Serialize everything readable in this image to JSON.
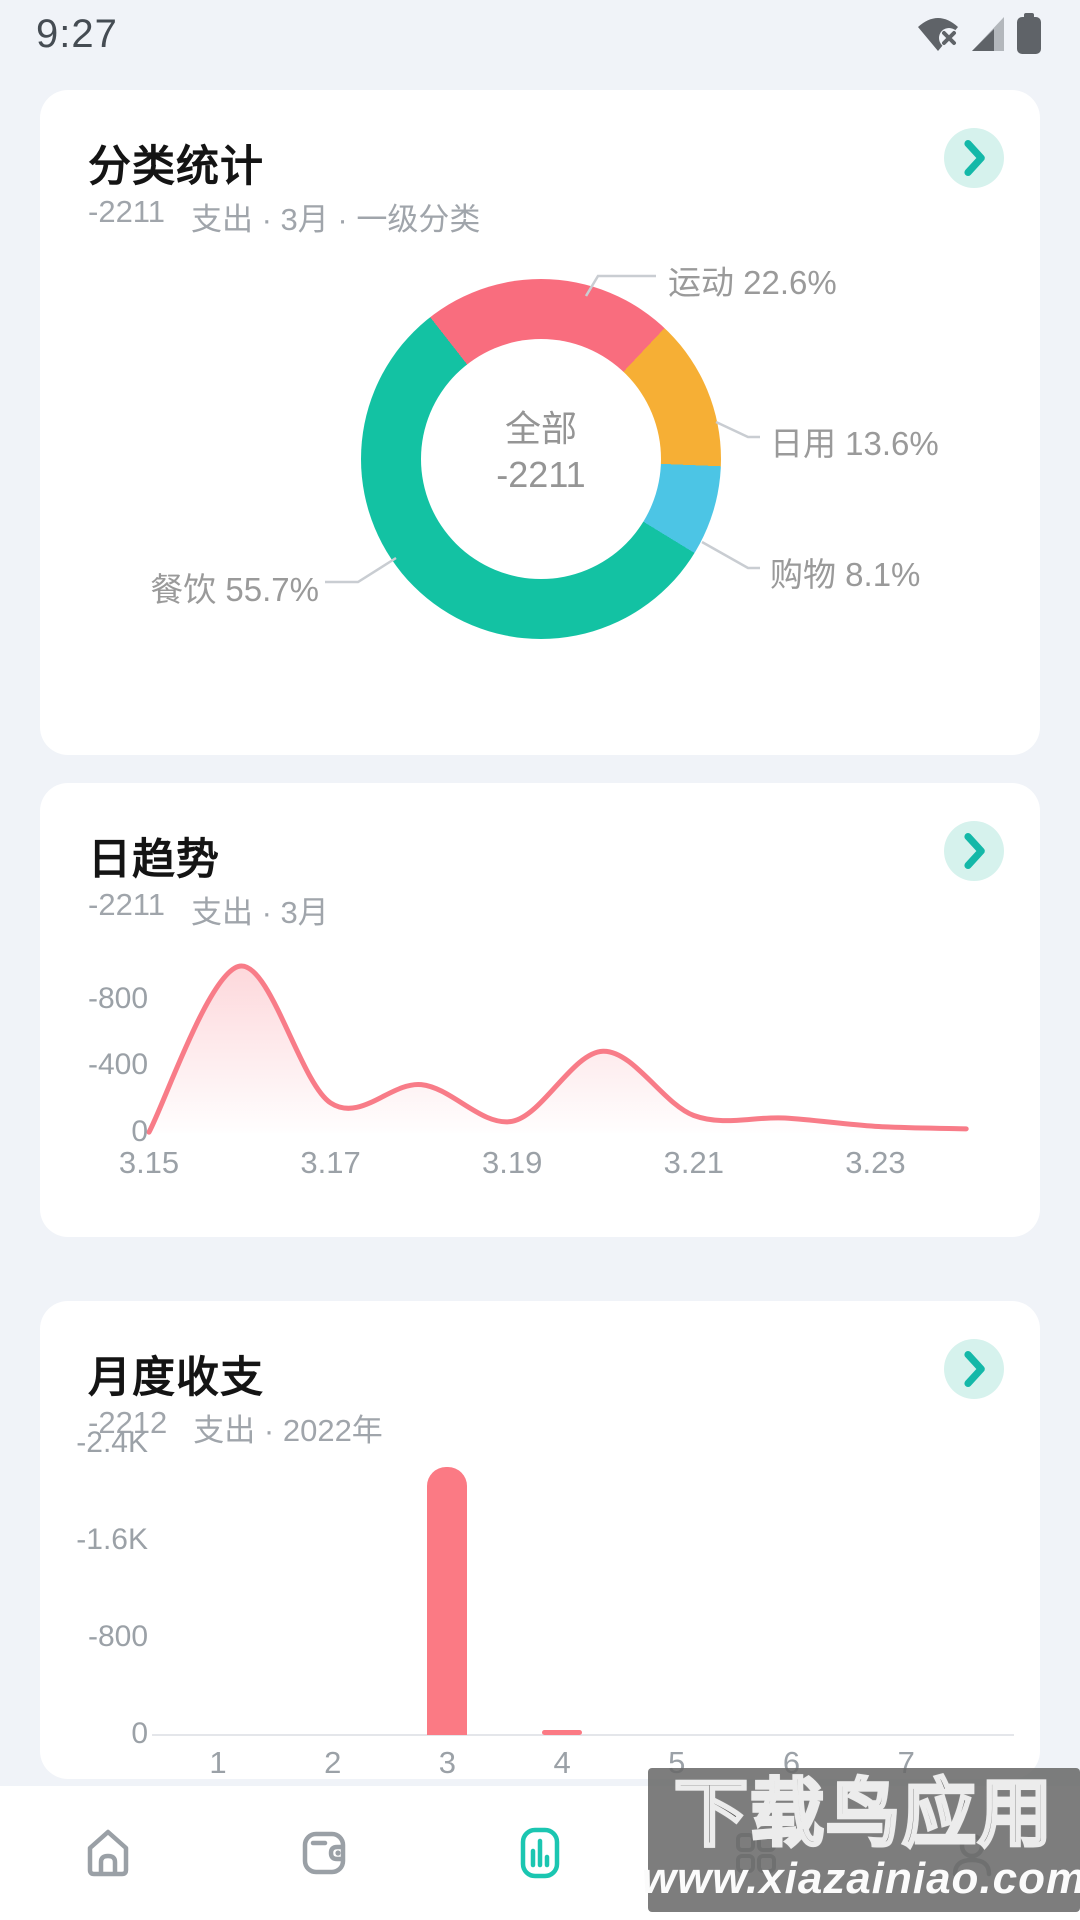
{
  "status_bar": {
    "time": "9:27",
    "icons": [
      "wifi-off-icon",
      "cellular-signal-icon",
      "battery-icon"
    ]
  },
  "colors": {
    "accent_teal": "#1BC6B1",
    "chevron": "#14B8A8",
    "chevron_bg": "#D6F2ED",
    "donut_sport": "#F96D7E",
    "donut_daily": "#F6AF35",
    "donut_shopping": "#4CC5E5",
    "donut_food": "#13C2A3",
    "line_pink": "#F87C88",
    "bar_pink": "#FB7A84",
    "gray_icon": "#9AA0A6",
    "status_icon": "#5F6368"
  },
  "cards": {
    "category": {
      "title": "分类统计",
      "value": "-2211",
      "meta": "支出 · 3月 · 一级分类"
    },
    "daily": {
      "title": "日趋势",
      "value": "-2211",
      "meta": "支出 · 3月"
    },
    "monthly": {
      "title": "月度收支",
      "value": "-2212",
      "meta": "支出 · 2022年"
    }
  },
  "chart_data": [
    {
      "type": "pie",
      "card": "category",
      "center_label": "全部",
      "center_value": "-2211",
      "start_angle_deg": -38,
      "legend_position": "callout-labels",
      "slices": [
        {
          "name": "运动",
          "pct": 22.6,
          "color": "#F96D7E",
          "label": "运动 22.6%"
        },
        {
          "name": "日用",
          "pct": 13.6,
          "color": "#F6AF35",
          "label": "日用 13.6%"
        },
        {
          "name": "购物",
          "pct": 8.1,
          "color": "#4CC5E5",
          "label": "购物 8.1%"
        },
        {
          "name": "餐饮",
          "pct": 55.7,
          "color": "#13C2A3",
          "label": "餐饮 55.7%"
        }
      ]
    },
    {
      "type": "area",
      "card": "daily",
      "x": [
        "3.15",
        "3.16",
        "3.17",
        "3.18",
        "3.19",
        "3.20",
        "3.21",
        "3.22",
        "3.23",
        "3.24"
      ],
      "values": [
        -5,
        -1000,
        -180,
        -290,
        -70,
        -490,
        -105,
        -90,
        -40,
        -25
      ],
      "yticks": [
        {
          "label": "-800",
          "value": -800
        },
        {
          "label": "-400",
          "value": -400
        },
        {
          "label": "0",
          "value": 0
        }
      ],
      "xticks": [
        "3.15",
        "3.17",
        "3.19",
        "3.21",
        "3.23"
      ],
      "ylim": [
        0,
        -1050
      ],
      "grid": false,
      "line_color": "#F87C88"
    },
    {
      "type": "bar",
      "card": "monthly",
      "categories": [
        "1",
        "2",
        "3",
        "4",
        "5",
        "6",
        "7"
      ],
      "values": [
        0,
        0,
        -2211,
        -1,
        0,
        0,
        0
      ],
      "yticks": [
        {
          "label": "-2.4K",
          "value": -2400
        },
        {
          "label": "-1.6K",
          "value": -1600
        },
        {
          "label": "-800",
          "value": -800
        },
        {
          "label": "0",
          "value": 0
        }
      ],
      "ylim": [
        0,
        -2400
      ],
      "grid": false,
      "bar_color": "#FB7A84"
    }
  ],
  "nav": {
    "items": [
      {
        "name": "home",
        "active": false
      },
      {
        "name": "wallet",
        "active": false
      },
      {
        "name": "stats",
        "active": true
      },
      {
        "name": "grid",
        "active": false
      },
      {
        "name": "profile",
        "active": false
      }
    ]
  },
  "watermark": {
    "line1": "下载鸟应用",
    "line2": "www.xiazainiao.com"
  }
}
